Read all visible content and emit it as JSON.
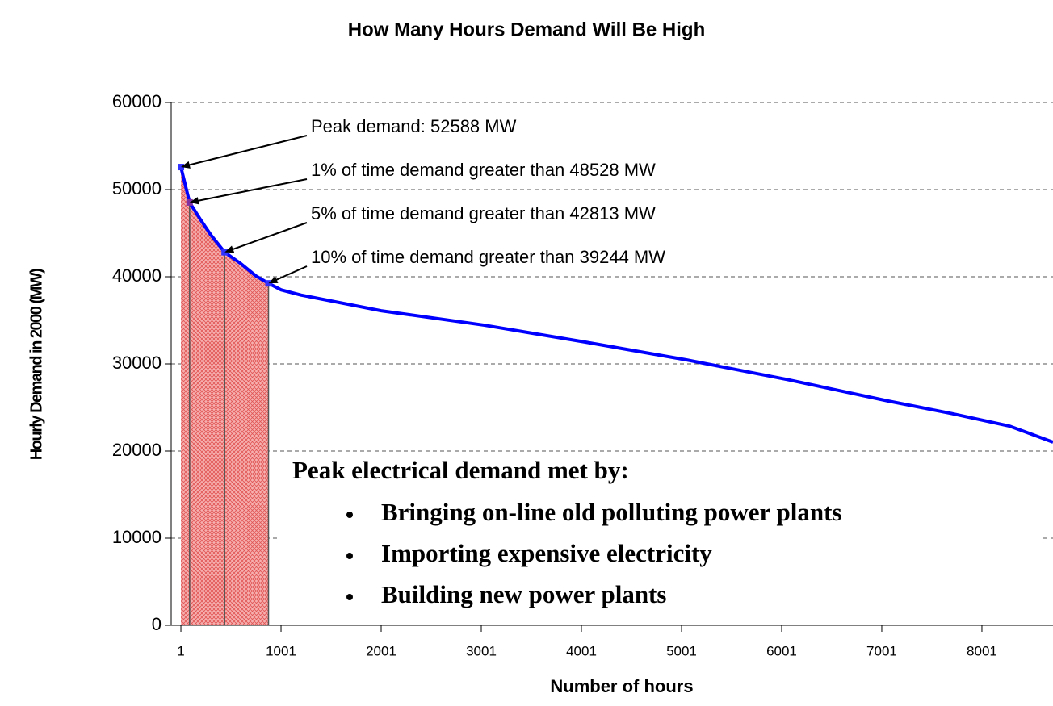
{
  "chart_data": {
    "type": "line",
    "title": "How Many Hours Demand Will Be High",
    "xlabel": "Number of hours",
    "ylabel": "Hourly Demand in 2000 (MW)",
    "x": [
      1,
      88,
      200,
      300,
      438,
      600,
      750,
      876,
      1001,
      1200,
      2001,
      3033,
      4040,
      5050,
      6060,
      7065,
      7700,
      8275,
      8711
    ],
    "series": [
      {
        "name": "Hourly demand",
        "color": "#0000ff",
        "values": [
          52588,
          48528,
          46500,
          44800,
          42813,
          41500,
          40100,
          39244,
          38500,
          37900,
          36100,
          34440,
          32500,
          30460,
          28200,
          25740,
          24300,
          22870,
          21020
        ]
      }
    ],
    "xlim": [
      -96,
      8711
    ],
    "ylim": [
      0,
      60000
    ],
    "xticks": [
      1,
      1001,
      2001,
      3001,
      4001,
      5001,
      6001,
      7001,
      8001
    ],
    "yticks": [
      0,
      10000,
      20000,
      30000,
      40000,
      50000,
      60000
    ],
    "grid": true,
    "shade_color": "#f08080",
    "annotations": [
      {
        "text": "Peak demand: 52588 MW",
        "x": 1,
        "y": 52588
      },
      {
        "text": "1% of time demand greater than 48528 MW",
        "x": 88,
        "y": 48528
      },
      {
        "text": "5% of time demand greater than 42813 MW",
        "x": 438,
        "y": 42813
      },
      {
        "text": "10% of time demand greater than 39244 MW",
        "x": 876,
        "y": 39244
      }
    ],
    "note": {
      "heading": "Peak electrical demand met by:",
      "bullets": [
        "Bringing on-line old polluting power plants",
        "Importing expensive electricity",
        "Building new power plants"
      ]
    }
  }
}
